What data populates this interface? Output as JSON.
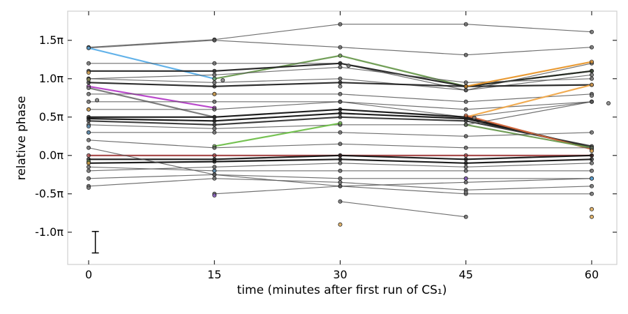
{
  "chart_data": {
    "type": "line",
    "title": "",
    "xlabel": "time (minutes after first run of CS₁)",
    "ylabel": "relative phase",
    "x_ticks": [
      0,
      15,
      30,
      45,
      60
    ],
    "x_tick_labels": [
      "0",
      "15",
      "30",
      "45",
      "60"
    ],
    "y_ticks": [
      1.5,
      1.0,
      0.5,
      0.0,
      -0.5,
      -1.0
    ],
    "y_tick_labels": [
      "1.5π",
      "1.0π",
      "0.5π",
      "0.0π",
      "-0.5π",
      "-1.0π"
    ],
    "xlim": [
      -2.5,
      63
    ],
    "ylim": [
      -1.42,
      1.88
    ],
    "y_units": "π rad",
    "grid": false,
    "error_bar": {
      "x": 0.8,
      "center": -1.13,
      "half_range": 0.14
    },
    "series": [
      {
        "color": "#555555",
        "points": [
          [
            0,
            1.41
          ],
          [
            15,
            1.51
          ],
          [
            30,
            1.71
          ],
          [
            45,
            1.71
          ],
          [
            60,
            1.61
          ]
        ]
      },
      {
        "color": "#555555",
        "points": [
          [
            0,
            1.4
          ],
          [
            15,
            1.5
          ],
          [
            30,
            1.41
          ],
          [
            45,
            1.31
          ],
          [
            60,
            1.41
          ]
        ]
      },
      {
        "color": "#5aaee8",
        "points": [
          [
            0,
            1.4
          ],
          [
            15,
            1.0
          ]
        ]
      },
      {
        "color": "#6a9a4f",
        "points": [
          [
            15,
            1.0
          ],
          [
            30,
            1.3
          ],
          [
            45,
            0.9
          ],
          [
            60,
            1.1
          ]
        ]
      },
      {
        "color": "#555555",
        "points": [
          [
            0,
            1.2
          ],
          [
            15,
            1.2
          ],
          [
            30,
            1.2
          ],
          [
            45,
            0.85
          ],
          [
            60,
            1.2
          ]
        ]
      },
      {
        "color": "#222222",
        "points": [
          [
            0,
            1.1
          ],
          [
            15,
            1.1
          ],
          [
            30,
            1.2
          ],
          [
            45,
            0.9
          ],
          [
            60,
            1.1
          ]
        ]
      },
      {
        "color": "#555555",
        "points": [
          [
            0,
            1.0
          ],
          [
            15,
            0.95
          ],
          [
            30,
            1.0
          ],
          [
            45,
            0.85
          ],
          [
            60,
            1.05
          ]
        ]
      },
      {
        "color": "#555555",
        "points": [
          [
            0,
            1.0
          ],
          [
            15,
            1.05
          ],
          [
            30,
            1.15
          ],
          [
            45,
            0.95
          ],
          [
            60,
            1.0
          ]
        ]
      },
      {
        "color": "#222222",
        "points": [
          [
            0,
            0.95
          ],
          [
            15,
            0.9
          ],
          [
            30,
            0.95
          ],
          [
            45,
            0.9
          ],
          [
            60,
            0.92
          ]
        ]
      },
      {
        "color": "#e8962a",
        "points": [
          [
            45,
            0.9
          ],
          [
            60,
            1.22
          ]
        ]
      },
      {
        "color": "#b53fc8",
        "points": [
          [
            0,
            0.9
          ],
          [
            15,
            0.62
          ]
        ]
      },
      {
        "color": "#777777",
        "points": [
          [
            0,
            0.88
          ],
          [
            15,
            0.5
          ]
        ]
      },
      {
        "color": "#555555",
        "points": [
          [
            0,
            0.8
          ],
          [
            15,
            0.8
          ],
          [
            30,
            0.8
          ],
          [
            45,
            0.7
          ],
          [
            60,
            0.8
          ]
        ]
      },
      {
        "color": "#555555",
        "points": [
          [
            0,
            0.7
          ],
          [
            15,
            0.7
          ],
          [
            30,
            0.7
          ],
          [
            45,
            0.6
          ],
          [
            60,
            0.7
          ]
        ]
      },
      {
        "color": "#555555",
        "points": [
          [
            0,
            0.6
          ],
          [
            15,
            0.6
          ],
          [
            30,
            0.7
          ],
          [
            45,
            0.5
          ],
          [
            60,
            0.7
          ]
        ]
      },
      {
        "color": "#f0a84a",
        "points": [
          [
            45,
            0.5
          ],
          [
            60,
            0.92
          ]
        ]
      },
      {
        "color": "#111111",
        "points": [
          [
            0,
            0.5
          ],
          [
            15,
            0.5
          ],
          [
            30,
            0.6
          ],
          [
            45,
            0.5
          ],
          [
            60,
            0.1
          ]
        ]
      },
      {
        "color": "#111111",
        "points": [
          [
            0,
            0.48
          ],
          [
            15,
            0.45
          ],
          [
            30,
            0.55
          ],
          [
            45,
            0.48
          ],
          [
            60,
            0.1
          ]
        ]
      },
      {
        "color": "#333333",
        "points": [
          [
            0,
            0.45
          ],
          [
            15,
            0.4
          ],
          [
            30,
            0.5
          ],
          [
            45,
            0.45
          ],
          [
            60,
            0.12
          ]
        ]
      },
      {
        "color": "#d4663a",
        "points": [
          [
            45,
            0.52
          ],
          [
            60,
            0.08
          ]
        ]
      },
      {
        "color": "#6a9a4f",
        "points": [
          [
            45,
            0.4
          ],
          [
            60,
            0.1
          ]
        ]
      },
      {
        "color": "#555555",
        "points": [
          [
            0,
            0.4
          ],
          [
            15,
            0.35
          ],
          [
            30,
            0.4
          ],
          [
            45,
            0.4
          ],
          [
            60,
            0.7
          ]
        ]
      },
      {
        "color": "#555555",
        "points": [
          [
            0,
            0.3
          ],
          [
            15,
            0.3
          ],
          [
            30,
            0.3
          ],
          [
            45,
            0.25
          ],
          [
            60,
            0.3
          ]
        ]
      },
      {
        "color": "#6fbf4a",
        "points": [
          [
            15,
            0.12
          ],
          [
            30,
            0.42
          ]
        ]
      },
      {
        "color": "#555555",
        "points": [
          [
            0,
            0.2
          ],
          [
            15,
            0.1
          ],
          [
            30,
            0.15
          ],
          [
            45,
            0.1
          ],
          [
            60,
            0.1
          ]
        ]
      },
      {
        "color": "#a03a3a",
        "points": [
          [
            0,
            0.0
          ],
          [
            15,
            0.0
          ],
          [
            30,
            0.0
          ],
          [
            45,
            0.0
          ],
          [
            60,
            0.0
          ]
        ]
      },
      {
        "color": "#111111",
        "points": [
          [
            0,
            -0.05
          ],
          [
            15,
            -0.05
          ],
          [
            30,
            0.0
          ],
          [
            45,
            -0.05
          ],
          [
            60,
            0.0
          ]
        ]
      },
      {
        "color": "#111111",
        "points": [
          [
            0,
            -0.1
          ],
          [
            15,
            -0.08
          ],
          [
            30,
            -0.05
          ],
          [
            45,
            -0.1
          ],
          [
            60,
            -0.05
          ]
        ]
      },
      {
        "color": "#555555",
        "points": [
          [
            0,
            -0.15
          ],
          [
            15,
            -0.2
          ],
          [
            30,
            -0.2
          ],
          [
            45,
            -0.2
          ],
          [
            60,
            -0.2
          ]
        ]
      },
      {
        "color": "#555555",
        "points": [
          [
            0,
            -0.2
          ],
          [
            15,
            -0.15
          ],
          [
            30,
            -0.1
          ],
          [
            45,
            -0.15
          ],
          [
            60,
            -0.1
          ]
        ]
      },
      {
        "color": "#555555",
        "points": [
          [
            0,
            -0.3
          ],
          [
            15,
            -0.25
          ],
          [
            30,
            -0.3
          ],
          [
            45,
            -0.3
          ],
          [
            60,
            -0.3
          ]
        ]
      },
      {
        "color": "#555555",
        "points": [
          [
            0,
            0.1
          ],
          [
            15,
            -0.25
          ],
          [
            30,
            -0.4
          ],
          [
            45,
            -0.35
          ],
          [
            60,
            -0.3
          ]
        ]
      },
      {
        "color": "#555555",
        "points": [
          [
            15,
            -0.5
          ],
          [
            30,
            -0.4
          ],
          [
            45,
            -0.5
          ],
          [
            60,
            -0.5
          ]
        ]
      },
      {
        "color": "#555555",
        "points": [
          [
            0,
            -0.4
          ],
          [
            15,
            -0.3
          ],
          [
            30,
            -0.35
          ],
          [
            45,
            -0.45
          ],
          [
            60,
            -0.4
          ]
        ]
      },
      {
        "color": "#555555",
        "points": [
          [
            30,
            -0.6
          ],
          [
            45,
            -0.8
          ]
        ]
      }
    ],
    "scatter_points": [
      {
        "x": 0,
        "y": 1.08,
        "color": "#d9a24a"
      },
      {
        "x": 0,
        "y": 0.99,
        "color": "#8c8c5a"
      },
      {
        "x": 0,
        "y": 0.38,
        "color": "#5a8fb5"
      },
      {
        "x": 0,
        "y": 0.3,
        "color": "#5a8fb5"
      },
      {
        "x": 0,
        "y": -0.08,
        "color": "#6fa24a"
      },
      {
        "x": 0,
        "y": -0.1,
        "color": "#d9a24a"
      },
      {
        "x": 0,
        "y": -0.42,
        "color": "#777777"
      },
      {
        "x": 0,
        "y": 0.6,
        "color": "#d9a24a"
      },
      {
        "x": 15,
        "y": 0.8,
        "color": "#d9a24a"
      },
      {
        "x": 15,
        "y": -0.52,
        "color": "#8b5cc8"
      },
      {
        "x": 15,
        "y": -0.2,
        "color": "#5a8fb5"
      },
      {
        "x": 30,
        "y": -0.9,
        "color": "#d9a24a"
      },
      {
        "x": 30,
        "y": 0.9,
        "color": "#777777"
      },
      {
        "x": 45,
        "y": -0.48,
        "color": "#777777"
      },
      {
        "x": 45,
        "y": -0.3,
        "color": "#8b5cc8"
      },
      {
        "x": 60,
        "y": -0.7,
        "color": "#d9a24a"
      },
      {
        "x": 60,
        "y": -0.8,
        "color": "#d9a24a"
      },
      {
        "x": 60,
        "y": -0.3,
        "color": "#5aaee8"
      },
      {
        "x": 60,
        "y": 0.78,
        "color": "#777777"
      },
      {
        "x": 60,
        "y": 0.06,
        "color": "#d9a24a"
      },
      {
        "x": 62,
        "y": 0.68,
        "color": "#777777"
      },
      {
        "x": 1,
        "y": 0.72,
        "color": "#777777"
      },
      {
        "x": 16,
        "y": 0.98,
        "color": "#777777"
      },
      {
        "x": 31,
        "y": 1.17,
        "color": "#777777"
      },
      {
        "x": 46,
        "y": 0.49,
        "color": "#777777"
      }
    ]
  }
}
